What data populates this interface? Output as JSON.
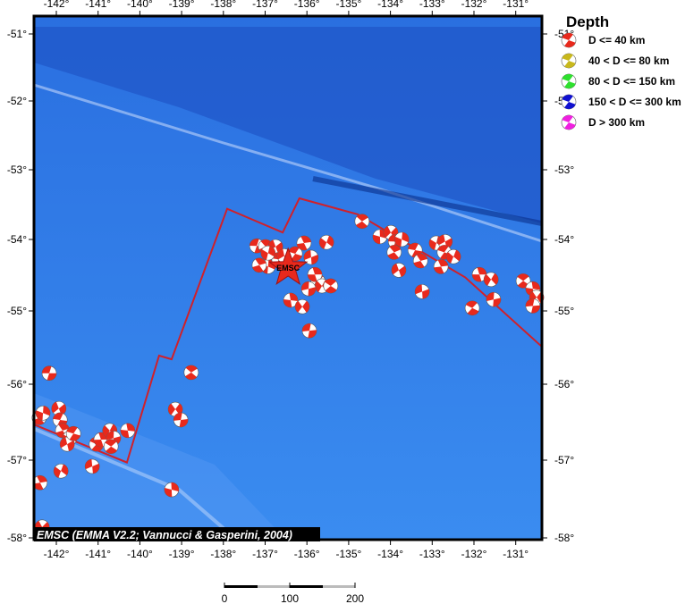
{
  "map": {
    "lon_range": [
      -142.53,
      -130.37
    ],
    "lat_range": [
      -58,
      -50.75
    ],
    "lon_ticks": [
      -142,
      -141,
      -140,
      -139,
      -138,
      -137,
      -136,
      -135,
      -134,
      -133,
      -132,
      -131
    ],
    "lat_ticks": [
      -51,
      -52,
      -53,
      -54,
      -55,
      -56,
      -57,
      -58
    ],
    "credit": "EMSC (EMMA V2.2; Vannucci & Gasperini, 2004)",
    "epicenter": {
      "label": "EMSC",
      "lon": -136.45,
      "lat": -54.4,
      "color": "#e8291c"
    },
    "plate_boundary": {
      "color": "#d0202a",
      "points": [
        [
          -142.54,
          -56.53
        ],
        [
          -140.31,
          -57.03
        ],
        [
          -139.54,
          -55.61
        ],
        [
          -139.24,
          -55.66
        ],
        [
          -137.91,
          -53.56
        ],
        [
          -136.58,
          -53.9
        ],
        [
          -136.18,
          -53.41
        ],
        [
          -134.78,
          -53.64
        ],
        [
          -132.21,
          -54.53
        ],
        [
          -130.37,
          -55.49
        ]
      ]
    },
    "events": [
      [
        -142.17,
        -55.85
      ],
      [
        -142.41,
        -56.44
      ],
      [
        -142.32,
        -56.38
      ],
      [
        -141.94,
        -56.32
      ],
      [
        -141.91,
        -56.47
      ],
      [
        -141.85,
        -56.61
      ],
      [
        -141.68,
        -56.71
      ],
      [
        -141.74,
        -56.79
      ],
      [
        -141.59,
        -56.65
      ],
      [
        -142.39,
        -57.29
      ],
      [
        -141.89,
        -57.14
      ],
      [
        -141.14,
        -57.08
      ],
      [
        -141.04,
        -56.79
      ],
      [
        -140.93,
        -56.73
      ],
      [
        -140.72,
        -56.61
      ],
      [
        -140.63,
        -56.71
      ],
      [
        -140.69,
        -56.82
      ],
      [
        -140.29,
        -56.61
      ],
      [
        -139.15,
        -56.33
      ],
      [
        -139.02,
        -56.47
      ],
      [
        -138.77,
        -55.84
      ],
      [
        -139.24,
        -57.38
      ],
      [
        -142.34,
        -57.86
      ],
      [
        -137.2,
        -54.09
      ],
      [
        -136.99,
        -54.1
      ],
      [
        -136.93,
        -54.38
      ],
      [
        -136.75,
        -54.1
      ],
      [
        -136.67,
        -54.28
      ],
      [
        -137.14,
        -54.36
      ],
      [
        -136.93,
        -54.19
      ],
      [
        -136.54,
        -54.23
      ],
      [
        -136.28,
        -54.2
      ],
      [
        -136.07,
        -54.05
      ],
      [
        -135.53,
        -54.04
      ],
      [
        -135.9,
        -54.25
      ],
      [
        -135.73,
        -54.59
      ],
      [
        -135.81,
        -54.49
      ],
      [
        -135.64,
        -54.65
      ],
      [
        -135.96,
        -54.69
      ],
      [
        -135.43,
        -54.65
      ],
      [
        -136.39,
        -54.85
      ],
      [
        -136.11,
        -54.94
      ],
      [
        -135.94,
        -55.27
      ],
      [
        -134.68,
        -53.74
      ],
      [
        -134.25,
        -53.96
      ],
      [
        -133.99,
        -53.9
      ],
      [
        -133.88,
        -54.03
      ],
      [
        -133.91,
        -54.18
      ],
      [
        -133.73,
        -54.0
      ],
      [
        -133.8,
        -54.43
      ],
      [
        -133.41,
        -54.15
      ],
      [
        -133.28,
        -54.3
      ],
      [
        -132.9,
        -54.05
      ],
      [
        -132.69,
        -54.03
      ],
      [
        -132.71,
        -54.18
      ],
      [
        -132.79,
        -54.38
      ],
      [
        -132.49,
        -54.24
      ],
      [
        -133.24,
        -54.73
      ],
      [
        -132.04,
        -54.96
      ],
      [
        -131.87,
        -54.49
      ],
      [
        -131.59,
        -54.56
      ],
      [
        -131.53,
        -54.84
      ],
      [
        -130.82,
        -54.58
      ],
      [
        -130.59,
        -54.69
      ],
      [
        -130.5,
        -54.81
      ],
      [
        -130.59,
        -54.93
      ]
    ],
    "event_color": "#e8291c"
  },
  "legend": {
    "title": "Depth",
    "items": [
      {
        "label": "D <= 40 km",
        "color": "#e8291c"
      },
      {
        "label": "40 < D <= 80 km",
        "color": "#c8b81c"
      },
      {
        "label": "80 < D <= 150 km",
        "color": "#2ee02e"
      },
      {
        "label": "150 < D <= 300 km",
        "color": "#1010d0"
      },
      {
        "label": "D > 300 km",
        "color": "#f020e0"
      }
    ]
  },
  "scale_bar": {
    "labels": [
      "0",
      "100",
      "200"
    ]
  }
}
